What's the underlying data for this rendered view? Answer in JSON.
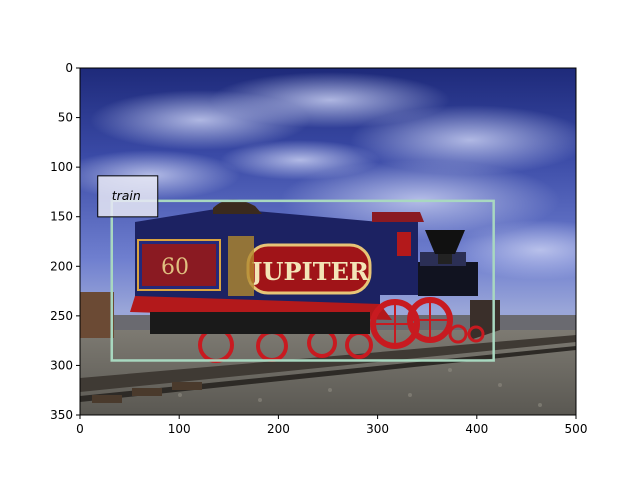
{
  "figure": {
    "image_description": "Photograph of the 'Jupiter' steam locomotive (number 60) with red wheels, dark blue tender and cab, on gravel track under a blue cloudy sky.",
    "image_extent": {
      "width": 500,
      "height": 350
    },
    "x_ticks": [
      0,
      100,
      200,
      300,
      400,
      500
    ],
    "y_ticks": [
      0,
      50,
      100,
      150,
      200,
      250,
      300,
      350
    ],
    "detections": [
      {
        "label": "train",
        "box": {
          "x_min": 32,
          "y_min": 134,
          "x_max": 417,
          "y_max": 295
        },
        "color": "#a8d8c0"
      }
    ],
    "tender_number": "60",
    "locomotive_name": "JUPITER"
  }
}
